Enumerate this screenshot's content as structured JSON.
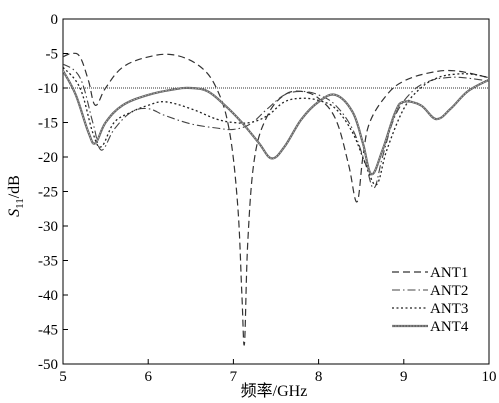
{
  "chart_data": {
    "type": "line",
    "xlabel": "频率/GHz",
    "ylabel": "S11/dB",
    "ylabel_main": "S",
    "ylabel_sub": "11",
    "ylabel_unit": "/dB",
    "xlim": [
      5,
      10
    ],
    "ylim": [
      -50,
      0
    ],
    "xticks": [
      5,
      6,
      7,
      8,
      9,
      10
    ],
    "yticks": [
      0,
      -5,
      -10,
      -15,
      -20,
      -25,
      -30,
      -35,
      -40,
      -45,
      -50
    ],
    "reference_line": -10,
    "grid": false,
    "legend_position": "lower-right",
    "series": [
      {
        "name": "ANT1",
        "style": "dashed",
        "x": [
          5.0,
          5.1,
          5.2,
          5.3,
          5.38,
          5.5,
          5.7,
          6.0,
          6.3,
          6.6,
          6.8,
          6.95,
          7.05,
          7.1,
          7.13,
          7.17,
          7.25,
          7.4,
          7.6,
          7.8,
          8.0,
          8.2,
          8.35,
          8.45,
          8.52,
          8.6,
          8.8,
          9.0,
          9.3,
          9.6,
          10.0
        ],
        "y": [
          -5.5,
          -5.0,
          -5.5,
          -9.0,
          -12.5,
          -10.0,
          -7.0,
          -5.5,
          -5.2,
          -6.8,
          -10.0,
          -16.0,
          -27.0,
          -40.0,
          -47.0,
          -32.0,
          -20.0,
          -14.0,
          -11.0,
          -10.5,
          -11.5,
          -14.5,
          -21.0,
          -26.5,
          -20.0,
          -15.0,
          -11.0,
          -9.0,
          -7.8,
          -7.5,
          -8.5
        ]
      },
      {
        "name": "ANT2",
        "style": "dashdot",
        "x": [
          5.0,
          5.2,
          5.35,
          5.45,
          5.6,
          5.8,
          6.0,
          6.2,
          6.5,
          6.8,
          7.0,
          7.2,
          7.4,
          7.6,
          7.8,
          8.0,
          8.2,
          8.4,
          8.55,
          8.65,
          8.75,
          8.9,
          9.1,
          9.3,
          9.5,
          9.7,
          10.0
        ],
        "y": [
          -6.5,
          -8.5,
          -15.0,
          -19.0,
          -16.0,
          -13.5,
          -13.0,
          -14.0,
          -15.2,
          -15.8,
          -16.0,
          -15.2,
          -13.0,
          -11.0,
          -10.5,
          -11.0,
          -12.5,
          -16.0,
          -21.0,
          -24.5,
          -20.0,
          -14.0,
          -10.5,
          -9.0,
          -8.5,
          -8.5,
          -9.0
        ]
      },
      {
        "name": "ANT3",
        "style": "dotted",
        "x": [
          5.0,
          5.2,
          5.35,
          5.45,
          5.6,
          5.8,
          6.0,
          6.2,
          6.5,
          6.8,
          7.0,
          7.2,
          7.4,
          7.6,
          7.8,
          8.0,
          8.2,
          8.4,
          8.55,
          8.68,
          8.8,
          9.0,
          9.2,
          9.4,
          9.6,
          9.8,
          10.0
        ],
        "y": [
          -7.0,
          -10.0,
          -16.5,
          -18.5,
          -15.0,
          -13.5,
          -12.5,
          -12.0,
          -13.0,
          -14.5,
          -15.0,
          -15.0,
          -14.0,
          -12.0,
          -11.5,
          -11.8,
          -13.0,
          -16.5,
          -21.0,
          -24.0,
          -19.0,
          -13.0,
          -10.0,
          -8.5,
          -8.0,
          -8.0,
          -8.5
        ]
      },
      {
        "name": "ANT4",
        "style": "solid-thick",
        "x": [
          5.0,
          5.15,
          5.3,
          5.38,
          5.5,
          5.7,
          6.0,
          6.3,
          6.5,
          6.7,
          6.9,
          7.1,
          7.3,
          7.45,
          7.6,
          7.8,
          8.0,
          8.2,
          8.4,
          8.52,
          8.62,
          8.75,
          8.9,
          9.0,
          9.2,
          9.38,
          9.55,
          9.75,
          10.0
        ],
        "y": [
          -7.5,
          -11.0,
          -16.5,
          -18.0,
          -15.0,
          -12.5,
          -11.0,
          -10.2,
          -10.0,
          -10.5,
          -12.5,
          -15.0,
          -18.0,
          -20.2,
          -18.5,
          -14.5,
          -12.0,
          -11.0,
          -13.5,
          -18.0,
          -22.5,
          -19.0,
          -13.5,
          -12.0,
          -12.5,
          -14.5,
          -13.0,
          -10.5,
          -8.8
        ]
      }
    ]
  }
}
